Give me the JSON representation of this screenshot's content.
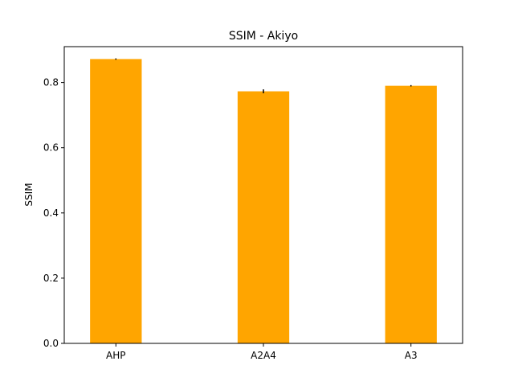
{
  "chart_data": {
    "type": "bar",
    "title": "SSIM - Akiyo",
    "xlabel": "",
    "ylabel": "SSIM",
    "categories": [
      "AHP",
      "A2A4",
      "A3"
    ],
    "values": [
      0.872,
      0.773,
      0.79
    ],
    "errors": [
      0.002,
      0.006,
      0.002
    ],
    "ylim": [
      0,
      0.91
    ],
    "yticks": [
      0.0,
      0.2,
      0.4,
      0.6,
      0.8
    ],
    "ytick_labels": [
      "0.0",
      "0.2",
      "0.4",
      "0.6",
      "0.8"
    ],
    "bar_color": "#FFA500",
    "error_color": "#000000",
    "grid": false,
    "legend": "none"
  }
}
